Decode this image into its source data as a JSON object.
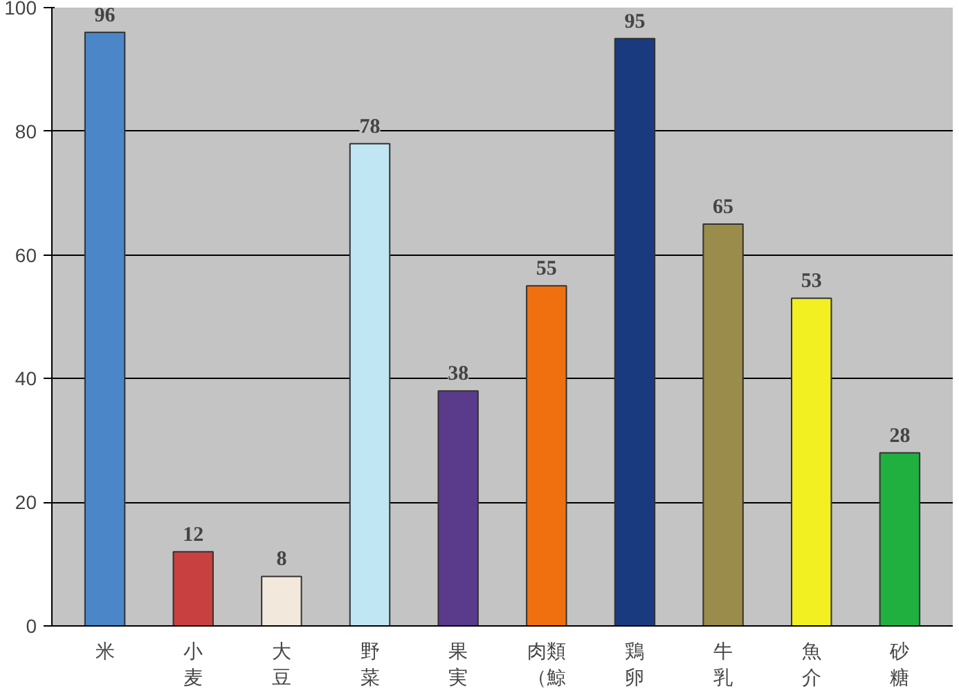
{
  "chart_data": {
    "type": "bar",
    "categories": [
      "米",
      "小麦",
      "大豆",
      "野菜",
      "果実",
      "肉類（鯨",
      "鶏卵",
      "牛乳",
      "魚介",
      "砂糖"
    ],
    "values": [
      96,
      12,
      8,
      78,
      38,
      55,
      95,
      65,
      53,
      28
    ],
    "colors": [
      "#4a86c8",
      "#c84040",
      "#f2e8dc",
      "#bfe6f2",
      "#5a3a8a",
      "#f07010",
      "#1a3a80",
      "#9a8c4a",
      "#f2f020",
      "#20b040"
    ],
    "ylim": [
      0,
      100
    ],
    "yticks": [
      0,
      20,
      40,
      60,
      80,
      100
    ],
    "grid": "y",
    "data_labels": true
  }
}
